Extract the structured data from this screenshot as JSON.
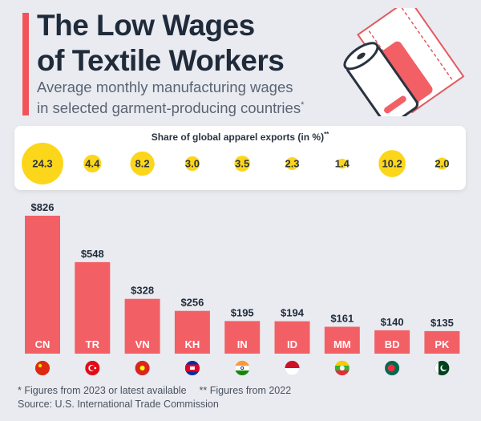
{
  "header": {
    "title_line1": "The Low Wages",
    "title_line2": "of Textile Workers",
    "subtitle_line1": "Average monthly manufacturing wages",
    "subtitle_line2": "in selected garment-producing countries",
    "subtitle_mark": "*"
  },
  "exports_panel": {
    "title": "Share of global apparel exports (in %)",
    "title_mark": "**"
  },
  "chart_data": {
    "type": "bar",
    "title": "The Low Wages of Textile Workers",
    "subtitle": "Average monthly manufacturing wages in selected garment-producing countries",
    "categories": [
      "CN",
      "TR",
      "VN",
      "KH",
      "IN",
      "ID",
      "MM",
      "BD",
      "PK"
    ],
    "values": [
      826,
      548,
      328,
      256,
      195,
      194,
      161,
      140,
      135
    ],
    "value_labels": [
      "$826",
      "$548",
      "$328",
      "$256",
      "$195",
      "$194",
      "$161",
      "$140",
      "$135"
    ],
    "ylim": [
      0,
      826
    ],
    "xlabel": "",
    "ylabel": "",
    "export_share": [
      24.3,
      4.4,
      8.2,
      3.0,
      3.5,
      2.3,
      1.4,
      10.2,
      2.0
    ],
    "export_share_labels": [
      "24.3",
      "4.4",
      "8.2",
      "3.0",
      "3.5",
      "2.3",
      "1.4",
      "10.2",
      "2.0"
    ]
  },
  "colors": {
    "bar": "#f26066",
    "bubble": "#fcd61b",
    "accent": "#f0545a",
    "text_dark": "#1f2a3a"
  },
  "flags": [
    "china-flag-icon",
    "turkey-flag-icon",
    "vietnam-flag-icon",
    "cambodia-flag-icon",
    "india-flag-icon",
    "indonesia-flag-icon",
    "myanmar-flag-icon",
    "bangladesh-flag-icon",
    "pakistan-flag-icon"
  ],
  "footnotes": {
    "note1": "* Figures from 2023 or latest available",
    "note2": "** Figures from 2022",
    "source": "Source: U.S. International Trade Commission"
  }
}
